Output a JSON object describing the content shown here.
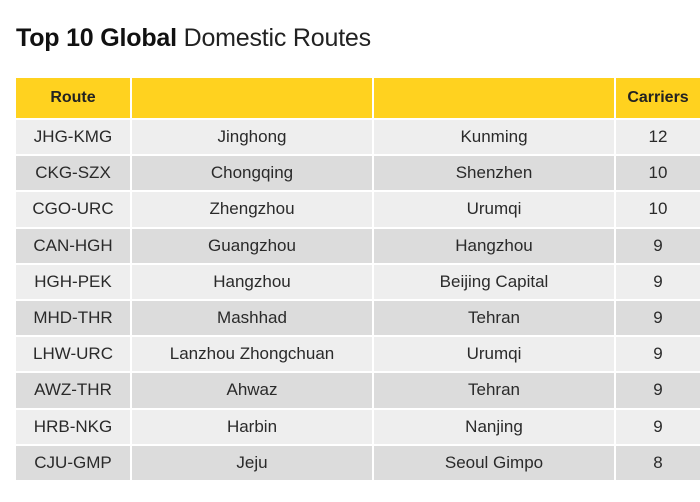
{
  "title": {
    "bold": "Top 10 Global",
    "light": "Domestic Routes"
  },
  "table": {
    "headers": [
      "Route",
      "",
      "",
      "Carriers"
    ],
    "rows": [
      {
        "route": "JHG-KMG",
        "origin": "Jinghong",
        "destination": "Kunming",
        "carriers": "12"
      },
      {
        "route": "CKG-SZX",
        "origin": "Chongqing",
        "destination": "Shenzhen",
        "carriers": "10"
      },
      {
        "route": "CGO-URC",
        "origin": "Zhengzhou",
        "destination": "Urumqi",
        "carriers": "10"
      },
      {
        "route": "CAN-HGH",
        "origin": "Guangzhou",
        "destination": "Hangzhou",
        "carriers": "9"
      },
      {
        "route": "HGH-PEK",
        "origin": "Hangzhou",
        "destination": "Beijing Capital",
        "carriers": "9"
      },
      {
        "route": "MHD-THR",
        "origin": "Mashhad",
        "destination": "Tehran",
        "carriers": "9"
      },
      {
        "route": "LHW-URC",
        "origin": "Lanzhou Zhongchuan",
        "destination": "Urumqi",
        "carriers": "9"
      },
      {
        "route": "AWZ-THR",
        "origin": "Ahwaz",
        "destination": "Tehran",
        "carriers": "9"
      },
      {
        "route": "HRB-NKG",
        "origin": "Harbin",
        "destination": "Nanjing",
        "carriers": "9"
      },
      {
        "route": "CJU-GMP",
        "origin": "Jeju",
        "destination": "Seoul Gimpo",
        "carriers": "8"
      }
    ]
  },
  "colors": {
    "header_bg": "#ffd21f",
    "row_odd_bg": "#eeeeee",
    "row_even_bg": "#dcdcdc"
  }
}
